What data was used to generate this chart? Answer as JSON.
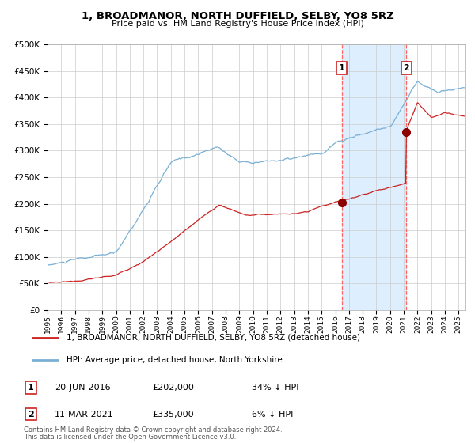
{
  "title": "1, BROADMANOR, NORTH DUFFIELD, SELBY, YO8 5RZ",
  "subtitle": "Price paid vs. HM Land Registry's House Price Index (HPI)",
  "legend1": "1, BROADMANOR, NORTH DUFFIELD, SELBY, YO8 5RZ (detached house)",
  "legend2": "HPI: Average price, detached house, North Yorkshire",
  "footnote1": "Contains HM Land Registry data © Crown copyright and database right 2024.",
  "footnote2": "This data is licensed under the Open Government Licence v3.0.",
  "sale1_label": "1",
  "sale1_date": "20-JUN-2016",
  "sale1_price": "£202,000",
  "sale1_hpi": "34% ↓ HPI",
  "sale1_year": 2016.467,
  "sale1_price_val": 202000,
  "sale2_label": "2",
  "sale2_date": "11-MAR-2021",
  "sale2_price": "£335,000",
  "sale2_hpi": "6% ↓ HPI",
  "sale2_year": 2021.192,
  "sale2_price_val": 335000,
  "hpi_color": "#7ab0d4",
  "price_color": "#cc2222",
  "sale_dot_color": "#8b0000",
  "vline_color": "#ff6666",
  "shade_color": "#ddeeff",
  "background_color": "#ffffff",
  "grid_color": "#cccccc",
  "ylim": [
    0,
    500000
  ],
  "xlim_start": 1995.0,
  "xlim_end": 2025.5
}
